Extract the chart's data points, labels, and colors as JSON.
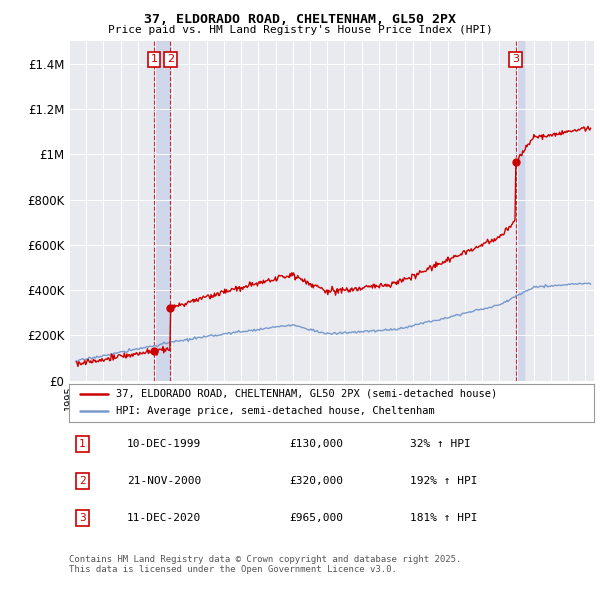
{
  "title": "37, ELDORADO ROAD, CHELTENHAM, GL50 2PX",
  "subtitle": "Price paid vs. HM Land Registry's House Price Index (HPI)",
  "legend_label_red": "37, ELDORADO ROAD, CHELTENHAM, GL50 2PX (semi-detached house)",
  "legend_label_blue": "HPI: Average price, semi-detached house, Cheltenham",
  "footer": "Contains HM Land Registry data © Crown copyright and database right 2025.\nThis data is licensed under the Open Government Licence v3.0.",
  "sales": [
    {
      "num": 1,
      "date": "10-DEC-1999",
      "price": 130000,
      "pct": "32% ↑ HPI",
      "year": 1999.95
    },
    {
      "num": 2,
      "date": "21-NOV-2000",
      "price": 320000,
      "pct": "192% ↑ HPI",
      "year": 2000.89
    },
    {
      "num": 3,
      "date": "11-DEC-2020",
      "price": 965000,
      "pct": "181% ↑ HPI",
      "year": 2020.95
    }
  ],
  "ylim": [
    0,
    1500000
  ],
  "yticks": [
    0,
    200000,
    400000,
    600000,
    800000,
    1000000,
    1200000,
    1400000
  ],
  "ytick_labels": [
    "£0",
    "£200K",
    "£400K",
    "£600K",
    "£800K",
    "£1M",
    "£1.2M",
    "£1.4M"
  ],
  "background_color": "#ffffff",
  "plot_bg_color": "#e8eaf0",
  "red_color": "#cc0000",
  "blue_color": "#7799cc",
  "shade_color": "#c8d0e8"
}
